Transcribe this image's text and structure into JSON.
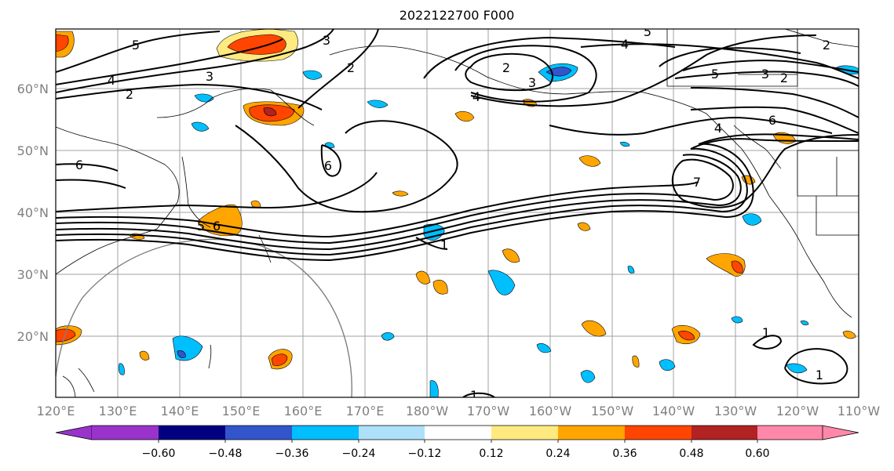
{
  "title": "2022122700 F000",
  "map": {
    "lat_labels": [
      "60°N",
      "50°N",
      "40°N",
      "30°N",
      "20°N"
    ],
    "lon_labels": [
      "120°E",
      "130°E",
      "140°E",
      "150°E",
      "160°E",
      "170°E",
      "180°W",
      "170°W",
      "160°W",
      "150°W",
      "140°W",
      "130°W",
      "120°W",
      "110°W"
    ],
    "contour_labels": [
      "5",
      "4",
      "3",
      "2",
      "2",
      "2",
      "3",
      "4",
      "5",
      "5",
      "3",
      "2",
      "4",
      "3",
      "2",
      "6",
      "6",
      "6",
      "5",
      "6",
      "1",
      "1",
      "1",
      "1",
      "7",
      "4"
    ],
    "colors": {
      "frame": "#000000",
      "grid": "#a0a0a0",
      "coast": "#000000",
      "circle": "#808080",
      "tick_text": "#808080"
    }
  },
  "colorbar": {
    "ticks": [
      "−0.60",
      "−0.48",
      "−0.36",
      "−0.24",
      "−0.12",
      "0.12",
      "0.24",
      "0.36",
      "0.48",
      "0.60"
    ],
    "bins": [
      {
        "color": "#9933cc"
      },
      {
        "color": "#000080"
      },
      {
        "color": "#3355cc"
      },
      {
        "color": "#00bfff"
      },
      {
        "color": "#aee0fa"
      },
      {
        "color": "#ffffff"
      },
      {
        "color": "#ffea80"
      },
      {
        "color": "#ffa500"
      },
      {
        "color": "#ff4500"
      },
      {
        "color": "#b22222"
      },
      {
        "color": "#ff88aa"
      }
    ]
  }
}
